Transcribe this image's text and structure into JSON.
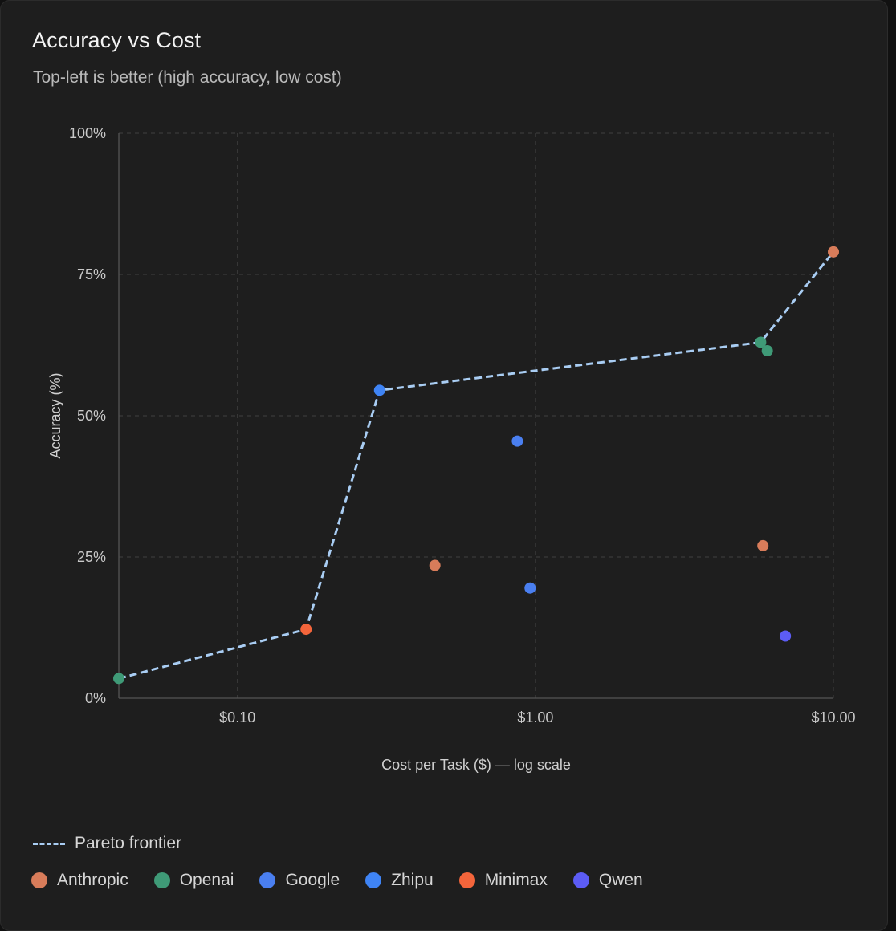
{
  "chart_data": {
    "type": "scatter",
    "title": "Accuracy vs Cost",
    "subtitle": "Top-left is better (high accuracy, low cost)",
    "xlabel": "Cost per Task ($) — log scale",
    "ylabel": "Accuracy (%)",
    "x_scale": "log",
    "xlim": [
      0.04,
      10.0
    ],
    "ylim": [
      0,
      100
    ],
    "x_ticks": [
      {
        "value": 0.1,
        "label": "$0.10"
      },
      {
        "value": 1.0,
        "label": "$1.00"
      },
      {
        "value": 10.0,
        "label": "$10.00"
      }
    ],
    "y_ticks": [
      {
        "value": 0,
        "label": "0%"
      },
      {
        "value": 25,
        "label": "25%"
      },
      {
        "value": 50,
        "label": "50%"
      },
      {
        "value": 75,
        "label": "75%"
      },
      {
        "value": 100,
        "label": "100%"
      }
    ],
    "grid": true,
    "series": [
      {
        "name": "Anthropic",
        "color": "#d87c5a",
        "points": [
          {
            "x": 10.0,
            "y": 79
          },
          {
            "x": 0.46,
            "y": 23.5
          },
          {
            "x": 5.8,
            "y": 27
          }
        ]
      },
      {
        "name": "Openai",
        "color": "#3f9a77",
        "points": [
          {
            "x": 0.04,
            "y": 3.5
          },
          {
            "x": 5.7,
            "y": 63
          },
          {
            "x": 6.0,
            "y": 61.5
          }
        ]
      },
      {
        "name": "Google",
        "color": "#4a7ff0",
        "points": [
          {
            "x": 0.87,
            "y": 45.5
          },
          {
            "x": 0.96,
            "y": 19.5
          }
        ]
      },
      {
        "name": "Zhipu",
        "color": "#3f84f5",
        "points": [
          {
            "x": 0.3,
            "y": 54.5
          }
        ]
      },
      {
        "name": "Minimax",
        "color": "#f4653b",
        "points": [
          {
            "x": 0.17,
            "y": 12.2
          }
        ]
      },
      {
        "name": "Qwen",
        "color": "#5c5cf5",
        "points": [
          {
            "x": 6.9,
            "y": 11
          }
        ]
      }
    ],
    "pareto_frontier": {
      "label": "Pareto frontier",
      "color": "#a9cdf3",
      "points": [
        {
          "x": 0.04,
          "y": 3.5
        },
        {
          "x": 0.17,
          "y": 12.2
        },
        {
          "x": 0.3,
          "y": 54.5
        },
        {
          "x": 5.7,
          "y": 63
        },
        {
          "x": 10.0,
          "y": 79
        }
      ]
    }
  }
}
